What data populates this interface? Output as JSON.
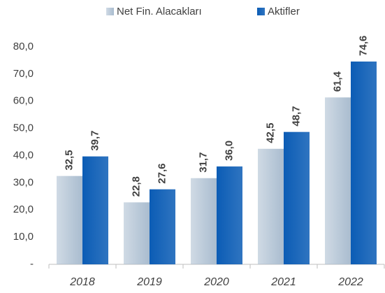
{
  "chart_data": {
    "type": "bar",
    "categories": [
      "2018",
      "2019",
      "2020",
      "2021",
      "2022"
    ],
    "series": [
      {
        "name": "Net Fin. Alacakları",
        "color": "#a9bccf",
        "values": [
          32.5,
          22.8,
          31.7,
          42.5,
          61.4
        ],
        "value_labels": [
          "32,5",
          "22,8",
          "31,7",
          "42,5",
          "61,4"
        ]
      },
      {
        "name": "Aktifler",
        "color": "#0b5cb5",
        "values": [
          39.7,
          27.6,
          36.0,
          48.7,
          74.6
        ],
        "value_labels": [
          "39,7",
          "27,6",
          "36,0",
          "48,7",
          "74,6"
        ]
      }
    ],
    "ylim": [
      0,
      80
    ],
    "yticks": [
      {
        "value": 0,
        "label": "-"
      },
      {
        "value": 10,
        "label": "10,0"
      },
      {
        "value": 20,
        "label": "20,0"
      },
      {
        "value": 30,
        "label": "30,0"
      },
      {
        "value": 40,
        "label": "40,0"
      },
      {
        "value": 50,
        "label": "50,0"
      },
      {
        "value": 60,
        "label": "60,0"
      },
      {
        "value": 70,
        "label": "70,0"
      },
      {
        "value": 80,
        "label": "80,0"
      }
    ],
    "grid": false,
    "legend": "top"
  }
}
